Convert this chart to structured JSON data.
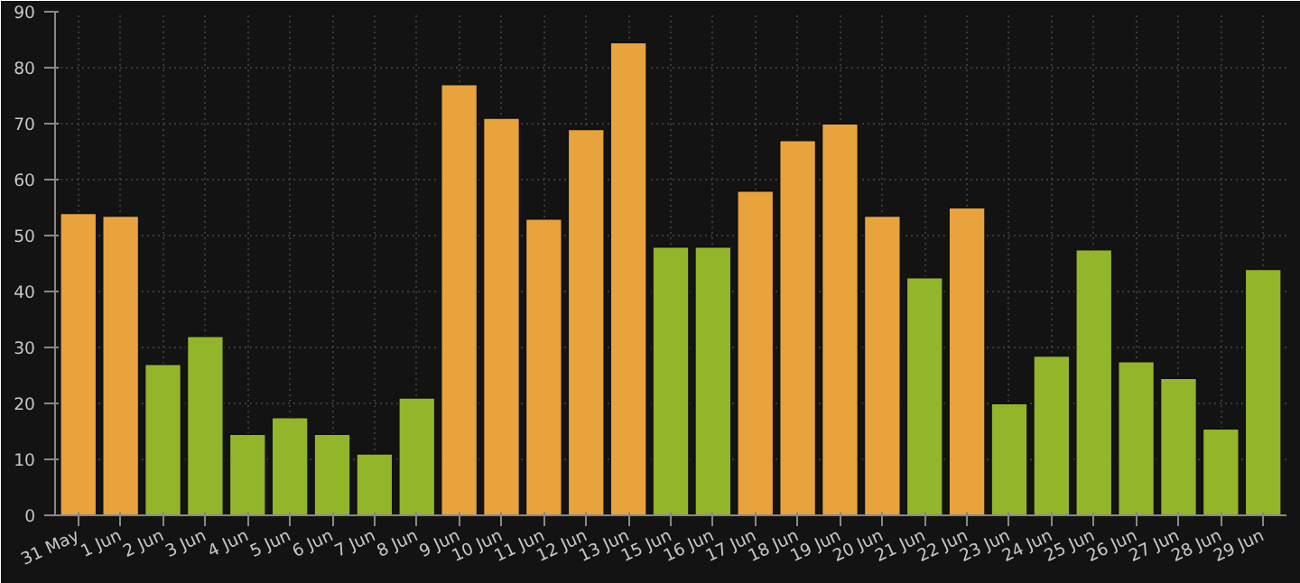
{
  "chart_data": {
    "type": "bar",
    "categories": [
      "31 May",
      "1 Jun",
      "2 Jun",
      "3 Jun",
      "4 Jun",
      "5 Jun",
      "6 Jun",
      "7 Jun",
      "8 Jun",
      "9 Jun",
      "10 Jun",
      "11 Jun",
      "12 Jun",
      "13 Jun",
      "15 Jun",
      "16 Jun",
      "17 Jun",
      "18 Jun",
      "19 Jun",
      "20 Jun",
      "21 Jun",
      "22 Jun",
      "23 Jun",
      "24 Jun",
      "25 Jun",
      "26 Jun",
      "27 Jun",
      "28 Jun",
      "29 Jun"
    ],
    "values": [
      54,
      53.5,
      27,
      32,
      14.5,
      17.5,
      14.5,
      11,
      21,
      77,
      71,
      53,
      69,
      84.5,
      48,
      48,
      58,
      67,
      70,
      53.5,
      42.5,
      55,
      20,
      28.5,
      47.5,
      27.5,
      24.5,
      15.5,
      44
    ],
    "colors": [
      "#e8a33d",
      "#e8a33d",
      "#93b52a",
      "#93b52a",
      "#93b52a",
      "#93b52a",
      "#93b52a",
      "#93b52a",
      "#93b52a",
      "#e8a33d",
      "#e8a33d",
      "#e8a33d",
      "#e8a33d",
      "#e8a33d",
      "#93b52a",
      "#93b52a",
      "#e8a33d",
      "#e8a33d",
      "#e8a33d",
      "#e8a33d",
      "#93b52a",
      "#e8a33d",
      "#93b52a",
      "#93b52a",
      "#93b52a",
      "#93b52a",
      "#93b52a",
      "#93b52a",
      "#93b52a"
    ],
    "ylim": [
      0,
      90
    ],
    "yticks": [
      0,
      10,
      20,
      30,
      40,
      50,
      60,
      70,
      80,
      90
    ],
    "grid": true
  }
}
